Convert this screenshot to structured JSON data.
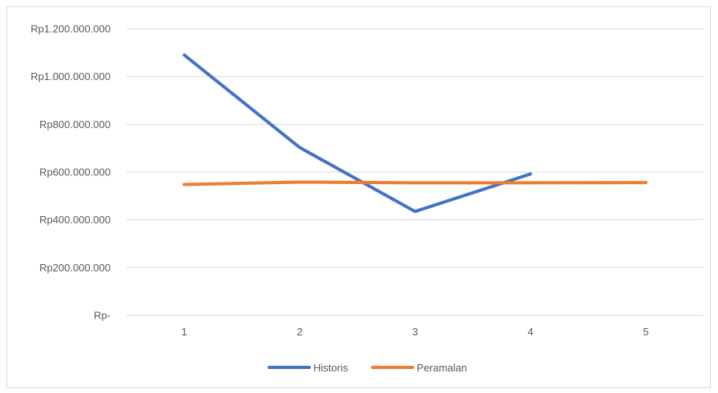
{
  "chart_data": {
    "type": "line",
    "title": "",
    "xlabel": "",
    "ylabel": "",
    "categories": [
      "1",
      "2",
      "3",
      "4",
      "5"
    ],
    "y_tick_labels": [
      "Rp-",
      "Rp200.000.000",
      "Rp400.000.000",
      "Rp600.000.000",
      "Rp800.000.000",
      "Rp1.000.000.000",
      "Rp1.200.000.000"
    ],
    "ylim": [
      0,
      1200000000
    ],
    "grid": true,
    "legend_position": "bottom",
    "series": [
      {
        "name": "Historis",
        "color": "#4472C4",
        "values": [
          1090000000,
          703000000,
          435000000,
          592000000,
          null
        ]
      },
      {
        "name": "Peramalan",
        "color": "#ED7D31",
        "values": [
          548000000,
          558000000,
          555000000,
          555000000,
          556000000
        ]
      }
    ]
  }
}
